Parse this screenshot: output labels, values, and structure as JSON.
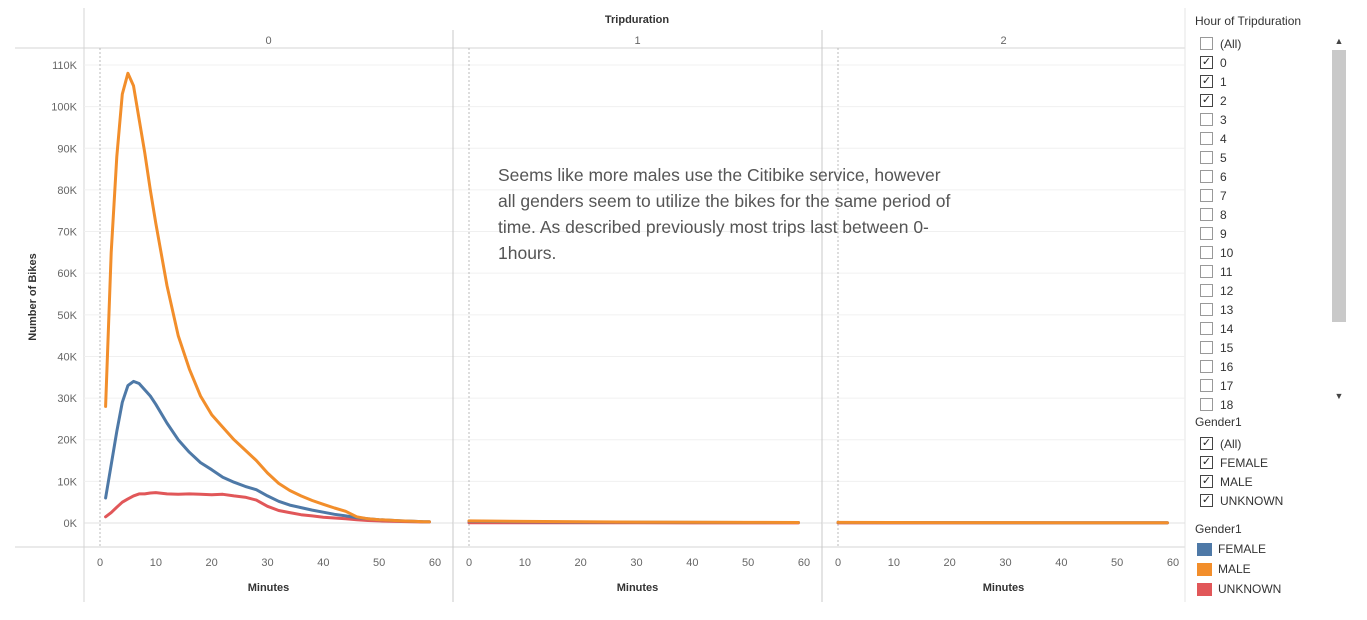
{
  "chart_data": {
    "type": "line",
    "header_title": "Tripduration",
    "panels": [
      "0",
      "1",
      "2"
    ],
    "ylabel": "Number of Bikes",
    "xlabel": "Minutes",
    "xlim": [
      0,
      60
    ],
    "ylim": [
      0,
      110000
    ],
    "x_ticks": [
      0,
      10,
      20,
      30,
      40,
      50,
      60
    ],
    "y_ticks": [
      0,
      10000,
      20000,
      30000,
      40000,
      50000,
      60000,
      70000,
      80000,
      90000,
      100000,
      110000
    ],
    "y_tick_labels": [
      "0K",
      "10K",
      "20K",
      "30K",
      "40K",
      "50K",
      "60K",
      "70K",
      "80K",
      "90K",
      "100K",
      "110K"
    ],
    "series": [
      {
        "name": "FEMALE",
        "color": "#4e79a7",
        "panels": [
          {
            "x": [
              1,
              2,
              3,
              4,
              5,
              6,
              7,
              8,
              9,
              10,
              12,
              14,
              16,
              18,
              20,
              22,
              24,
              26,
              28,
              30,
              32,
              34,
              36,
              38,
              40,
              42,
              44,
              46,
              48,
              50,
              52,
              54,
              56,
              58,
              59
            ],
            "y": [
              6000,
              14000,
              22000,
              29000,
              33000,
              34000,
              33500,
              32000,
              30500,
              28500,
              24000,
              20000,
              17000,
              14500,
              12800,
              11000,
              9800,
              8800,
              8000,
              6500,
              5200,
              4300,
              3700,
              3100,
              2600,
              2100,
              1700,
              1300,
              1000,
              800,
              650,
              500,
              400,
              300,
              280
            ]
          },
          {
            "x": [
              0,
              10,
              20,
              30,
              40,
              50,
              59
            ],
            "y": [
              400,
              300,
              220,
              180,
              150,
              130,
              120
            ]
          },
          {
            "x": [
              0,
              10,
              20,
              30,
              40,
              50,
              59
            ],
            "y": [
              120,
              100,
              90,
              80,
              70,
              70,
              60
            ]
          }
        ]
      },
      {
        "name": "MALE",
        "color": "#f28e2b",
        "panels": [
          {
            "x": [
              1,
              2,
              3,
              4,
              5,
              6,
              7,
              8,
              9,
              10,
              12,
              14,
              16,
              18,
              20,
              22,
              24,
              26,
              28,
              30,
              32,
              34,
              36,
              38,
              40,
              42,
              44,
              46,
              48,
              50,
              52,
              54,
              56,
              58,
              59
            ],
            "y": [
              28000,
              65000,
              88000,
              103000,
              108000,
              105000,
              97000,
              89000,
              80000,
              72000,
              57000,
              45000,
              37000,
              30500,
              26000,
              23000,
              20000,
              17500,
              15000,
              12000,
              9500,
              7800,
              6500,
              5400,
              4500,
              3600,
              2800,
              1500,
              1000,
              800,
              650,
              500,
              400,
              300,
              280
            ]
          },
          {
            "x": [
              0,
              10,
              20,
              30,
              40,
              50,
              59
            ],
            "y": [
              500,
              380,
              280,
              220,
              180,
              150,
              130
            ]
          },
          {
            "x": [
              0,
              10,
              20,
              30,
              40,
              50,
              59
            ],
            "y": [
              150,
              120,
              100,
              90,
              80,
              70,
              60
            ]
          }
        ]
      },
      {
        "name": "UNKNOWN",
        "color": "#e15759",
        "panels": [
          {
            "x": [
              1,
              2,
              3,
              4,
              5,
              6,
              7,
              8,
              9,
              10,
              12,
              14,
              16,
              18,
              20,
              22,
              24,
              26,
              28,
              30,
              32,
              34,
              36,
              38,
              40,
              42,
              44,
              46,
              48,
              50,
              52,
              54,
              56,
              58,
              59
            ],
            "y": [
              1500,
              2500,
              3800,
              5000,
              5800,
              6500,
              7000,
              7000,
              7200,
              7300,
              7000,
              6900,
              7000,
              6900,
              6800,
              6900,
              6500,
              6200,
              5500,
              4000,
              3000,
              2500,
              2000,
              1700,
              1400,
              1200,
              1000,
              800,
              600,
              500,
              400,
              350,
              300,
              250,
              230
            ]
          },
          {
            "x": [
              0,
              10,
              20,
              30,
              40,
              50,
              59
            ],
            "y": [
              80,
              60,
              50,
              40,
              30,
              30,
              30
            ]
          },
          {
            "x": [
              0,
              10,
              20,
              30,
              40,
              50,
              59
            ],
            "y": [
              30,
              20,
              20,
              20,
              20,
              20,
              20
            ]
          }
        ]
      }
    ],
    "annotation": "Seems like more males use the Citibike service, however all genders seem to utilize the bikes for the same period of time. As described previously most trips last between 0-1hours."
  },
  "filters": {
    "hour": {
      "title": "Hour of Tripduration",
      "items": [
        {
          "label": "(All)",
          "checked": false
        },
        {
          "label": "0",
          "checked": true
        },
        {
          "label": "1",
          "checked": true
        },
        {
          "label": "2",
          "checked": true
        },
        {
          "label": "3",
          "checked": false
        },
        {
          "label": "4",
          "checked": false
        },
        {
          "label": "5",
          "checked": false
        },
        {
          "label": "6",
          "checked": false
        },
        {
          "label": "7",
          "checked": false
        },
        {
          "label": "8",
          "checked": false
        },
        {
          "label": "9",
          "checked": false
        },
        {
          "label": "10",
          "checked": false
        },
        {
          "label": "11",
          "checked": false
        },
        {
          "label": "12",
          "checked": false
        },
        {
          "label": "13",
          "checked": false
        },
        {
          "label": "14",
          "checked": false
        },
        {
          "label": "15",
          "checked": false
        },
        {
          "label": "16",
          "checked": false
        },
        {
          "label": "17",
          "checked": false
        },
        {
          "label": "18",
          "checked": false
        }
      ]
    },
    "gender": {
      "title": "Gender1",
      "items": [
        {
          "label": "(All)",
          "checked": true
        },
        {
          "label": "FEMALE",
          "checked": true
        },
        {
          "label": "MALE",
          "checked": true
        },
        {
          "label": "UNKNOWN",
          "checked": true
        }
      ]
    }
  },
  "legend": {
    "title": "Gender1",
    "items": [
      {
        "label": "FEMALE",
        "color": "#4e79a7"
      },
      {
        "label": "MALE",
        "color": "#f28e2b"
      },
      {
        "label": "UNKNOWN",
        "color": "#e15759"
      }
    ]
  },
  "scrollbar": {
    "up_icon": "▲",
    "down_icon": "▼"
  },
  "check_glyph": "✓"
}
